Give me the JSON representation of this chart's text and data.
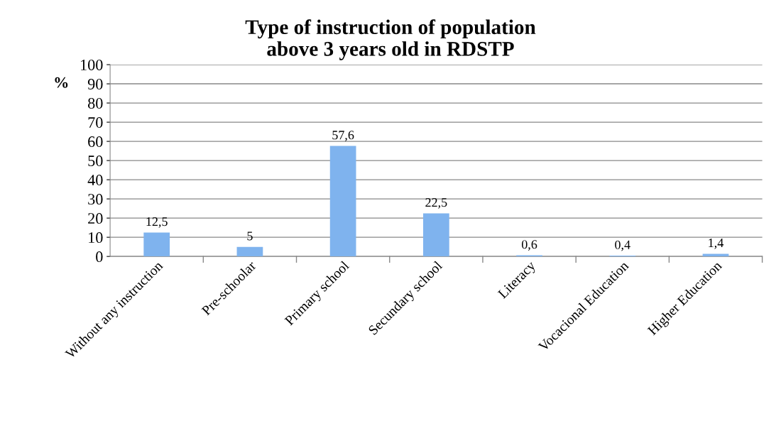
{
  "chart_data": {
    "type": "bar",
    "title": "Type of instruction of population\nabove 3 years old in RDSTP",
    "ylabel": "%",
    "categories": [
      "Without any instruction",
      "Pre-schoolar",
      "Primary school",
      "Secundary school",
      "Literacy",
      "Vocacional Education",
      "Higher Education"
    ],
    "values": [
      12.5,
      5,
      57.6,
      22.5,
      0.6,
      0.4,
      1.4
    ],
    "value_labels": [
      "12,5",
      "5",
      "57,6",
      "22,5",
      "0,6",
      "0,4",
      "1,4"
    ],
    "color": "#7fb3ee",
    "ylim": [
      0,
      100
    ],
    "yticks": [
      0,
      10,
      20,
      30,
      40,
      50,
      60,
      70,
      80,
      90,
      100
    ],
    "grid": "y",
    "legend": false
  }
}
